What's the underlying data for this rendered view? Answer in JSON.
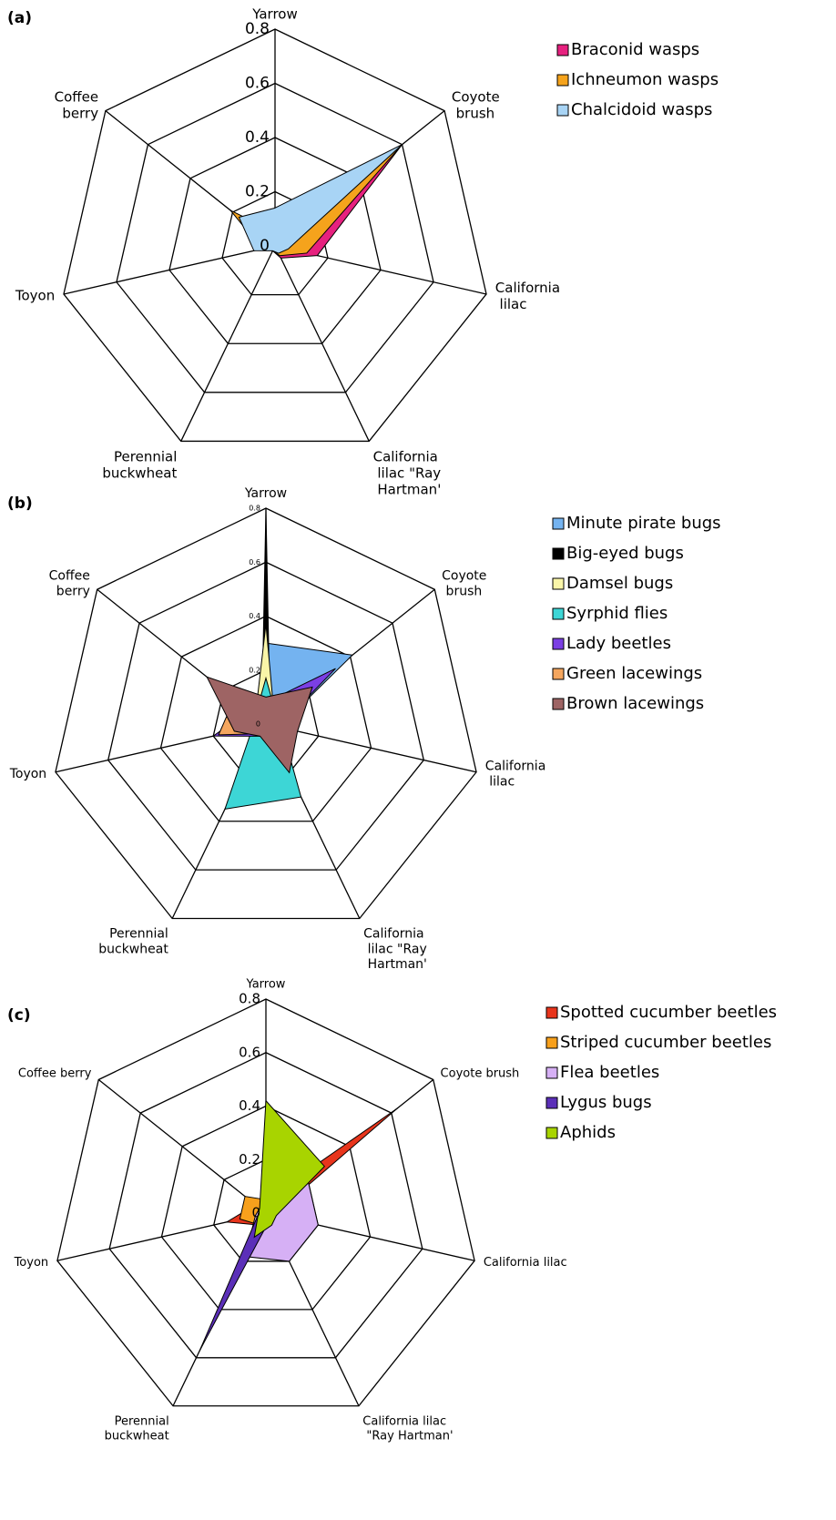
{
  "chart_data": [
    {
      "type": "radar",
      "panel": "(a)",
      "categories": [
        "Yarrow",
        "Coyote brush",
        "California lilac",
        "California lilac \"Ray Hartman'",
        "Perennial buckwheat",
        "Toyon",
        "Coffee berry"
      ],
      "ylim": [
        0,
        0.8
      ],
      "yticks": [
        0,
        0.2,
        0.4,
        0.6,
        0.8
      ],
      "series": [
        {
          "name": "Braconid wasps",
          "color": "#e6217f",
          "values": [
            0.05,
            0.6,
            0.16,
            0.05,
            0.02,
            0.05,
            0.12
          ]
        },
        {
          "name": "Ichneumon wasps",
          "color": "#f5a31c",
          "values": [
            0.05,
            0.6,
            0.12,
            0.04,
            0.02,
            0.05,
            0.21
          ]
        },
        {
          "name": "Chalcidoid wasps",
          "color": "#a8d4f5",
          "values": [
            0.14,
            0.6,
            0.05,
            0.03,
            0.02,
            0.08,
            0.17
          ]
        }
      ]
    },
    {
      "type": "radar",
      "panel": "(b)",
      "categories": [
        "Yarrow",
        "Coyote brush",
        "California lilac",
        "California lilac \"Ray Hartman'",
        "Perennial buckwheat",
        "Toyon",
        "Coffee berry"
      ],
      "ylim": [
        0,
        0.8
      ],
      "yticks": [
        0,
        0.2,
        0.4,
        0.6,
        0.8
      ],
      "series": [
        {
          "name": "Minute pirate bugs",
          "color": "#74b3f0",
          "values": [
            0.3,
            0.41,
            0.05,
            0.05,
            0.03,
            0.06,
            0.05
          ]
        },
        {
          "name": "Big-eyed bugs",
          "color": "#000000",
          "values": [
            0.8,
            0.02,
            0.02,
            0.02,
            0.02,
            0.02,
            0.02
          ]
        },
        {
          "name": "Damsel bugs",
          "color": "#f9f5a8",
          "values": [
            0.37,
            0.04,
            0.03,
            0.03,
            0.03,
            0.05,
            0.05
          ]
        },
        {
          "name": "Syrphid flies",
          "color": "#3dd6d6",
          "values": [
            0.17,
            0.05,
            0.06,
            0.3,
            0.35,
            0.05,
            0.05
          ]
        },
        {
          "name": "Lady beetles",
          "color": "#7b3fe4",
          "values": [
            0.08,
            0.33,
            0.05,
            0.05,
            0.05,
            0.2,
            0.08
          ]
        },
        {
          "name": "Green lacewings",
          "color": "#f5a65e",
          "values": [
            0.04,
            0.05,
            0.04,
            0.06,
            0.04,
            0.18,
            0.15
          ]
        },
        {
          "name": "Brown lacewings",
          "color": "#9e6464",
          "values": [
            0.1,
            0.22,
            0.12,
            0.2,
            0.05,
            0.12,
            0.28
          ]
        }
      ]
    },
    {
      "type": "radar",
      "panel": "(c)",
      "categories": [
        "Yarrow",
        "Coyote brush",
        "California lilac",
        "California lilac \"Ray Hartman'",
        "Perennial buckwheat",
        "Toyon",
        "Coffee berry"
      ],
      "ylim": [
        0,
        0.8
      ],
      "yticks": [
        0,
        0.2,
        0.4,
        0.6,
        0.8
      ],
      "series": [
        {
          "name": "Spotted cucumber beetles",
          "color": "#e8351c",
          "values": [
            0.05,
            0.63,
            0.03,
            0.03,
            0.05,
            0.15,
            0.05
          ]
        },
        {
          "name": "Striped cucumber beetles",
          "color": "#f7a01c",
          "values": [
            0.05,
            0.05,
            0.03,
            0.03,
            0.05,
            0.1,
            0.1
          ]
        },
        {
          "name": "Flea beetles",
          "color": "#d6b0f5",
          "values": [
            0.05,
            0.2,
            0.2,
            0.2,
            0.18,
            0.04,
            0.03
          ]
        },
        {
          "name": "Lygus bugs",
          "color": "#5b2fb8",
          "values": [
            0.03,
            0.05,
            0.03,
            0.03,
            0.57,
            0.03,
            0.03
          ]
        },
        {
          "name": "Aphids",
          "color": "#a8d400",
          "values": [
            0.42,
            0.28,
            0.04,
            0.05,
            0.1,
            0.03,
            0.03
          ]
        }
      ]
    }
  ]
}
